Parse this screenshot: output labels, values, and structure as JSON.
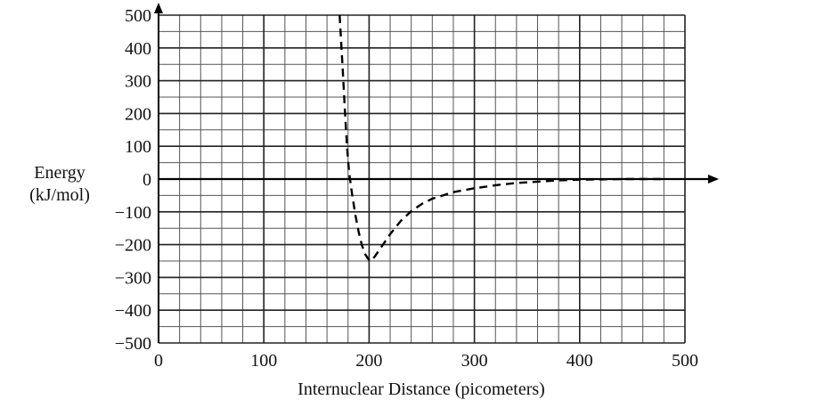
{
  "chart_data": {
    "type": "line",
    "title": "",
    "xlabel": "Internuclear Distance (picometers)",
    "ylabel_lines": [
      "Energy",
      "(kJ/mol)"
    ],
    "xlim": [
      0,
      500
    ],
    "ylim": [
      -500,
      500
    ],
    "x_ticks": [
      0,
      100,
      200,
      300,
      400,
      500
    ],
    "y_ticks": [
      500,
      400,
      300,
      200,
      100,
      0,
      -100,
      -200,
      -300,
      -400,
      -500
    ],
    "y_tick_labels": [
      "500",
      "400",
      "300",
      "200",
      "100",
      "0",
      "−100",
      "−200",
      "−300",
      "−400",
      "−500"
    ],
    "grid": true,
    "grid_minor_x_step": 20,
    "grid_minor_y_step": 50,
    "line_style": "dashed",
    "line_color": "#000000",
    "series": [
      {
        "x": [
          172,
          175,
          177,
          179,
          181,
          184,
          187,
          190,
          193,
          196,
          199,
          201,
          205,
          210,
          220,
          230,
          240,
          250,
          260,
          280,
          300,
          320,
          340,
          360,
          380,
          400,
          420,
          440,
          480
        ],
        "y": [
          500,
          330,
          210,
          100,
          20,
          -50,
          -110,
          -160,
          -200,
          -228,
          -243,
          -250,
          -238,
          -215,
          -168,
          -128,
          -98,
          -76,
          -60,
          -40,
          -28,
          -19,
          -12,
          -8,
          -4,
          -2,
          -1,
          0,
          0
        ]
      }
    ]
  }
}
